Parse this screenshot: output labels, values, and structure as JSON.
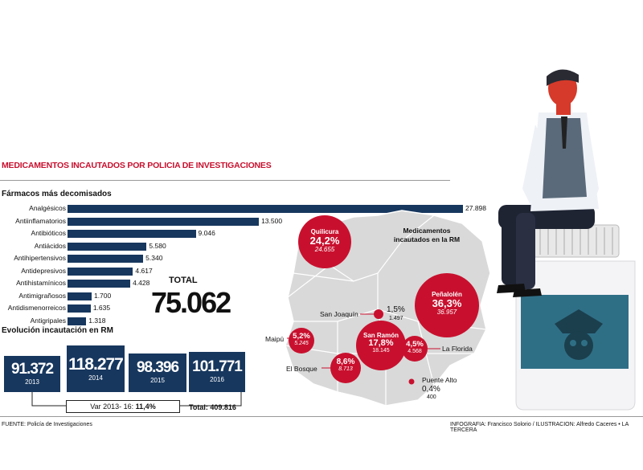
{
  "title": "MEDICAMENTOS INCAUTADOS POR POLICIA DE INVESTIGACIONES",
  "subtitle": "Fármacos más decomisados",
  "total_label": "TOTAL",
  "total_value": "75.062",
  "evolution_title": "Evolución incautación en RM",
  "variation_label": "Var 2013- 16:",
  "variation_value": "11,4%",
  "total_evolution": "Total: 409.816",
  "source": "FUENTE: Policía de Investigaciones",
  "credit": "INFOGRAFIA: Francisco Solorio / ILUSTRACION: Alfredo Caceres • LA TERCERA",
  "map_title": "Medicamentos incautados en la RM",
  "colors": {
    "bar": "#17375e",
    "accent": "#c8102e",
    "map": "#d5d5d5"
  },
  "chart_data": [
    {
      "type": "bar",
      "orientation": "horizontal",
      "categories": [
        "Analgésicos",
        "Antiinflamatorios",
        "Antibióticos",
        "Antiácidos",
        "Antihipertensivos",
        "Antidepresivos",
        "Antihistamínicos",
        "Antimigrañosos",
        "Antidismenorreicos",
        "Antigripales"
      ],
      "values": [
        27898,
        13500,
        9046,
        5580,
        5340,
        4617,
        4428,
        1700,
        1635,
        1318
      ],
      "value_labels": [
        "27.898",
        "13.500",
        "9.046",
        "5.580",
        "5.340",
        "4.617",
        "4.428",
        "1.700",
        "1.635",
        "1.318"
      ]
    },
    {
      "type": "bar",
      "categories": [
        "2013",
        "2014",
        "2015",
        "2016"
      ],
      "values": [
        91372,
        118277,
        98396,
        101771
      ],
      "value_labels": [
        "91.372",
        "118.277",
        "98.396",
        "101.771"
      ]
    },
    {
      "type": "map",
      "points": [
        {
          "name": "Quilicura",
          "pct": "24,2%",
          "count": "24.655"
        },
        {
          "name": "Peñalolén",
          "pct": "36,3%",
          "count": "36.957"
        },
        {
          "name": "San Joaquín",
          "pct": "1,5%",
          "count": "1.497"
        },
        {
          "name": "Maipú",
          "pct": "5,2%",
          "count": "5.245"
        },
        {
          "name": "San Ramón",
          "pct": "17,8%",
          "count": "18.145"
        },
        {
          "name": "La Florida",
          "pct": "4,5%",
          "count": "4.568"
        },
        {
          "name": "El Bosque",
          "pct": "8,6%",
          "count": "8.713"
        },
        {
          "name": "Puente Alto",
          "pct": "0,4%",
          "count": "400"
        }
      ]
    }
  ]
}
